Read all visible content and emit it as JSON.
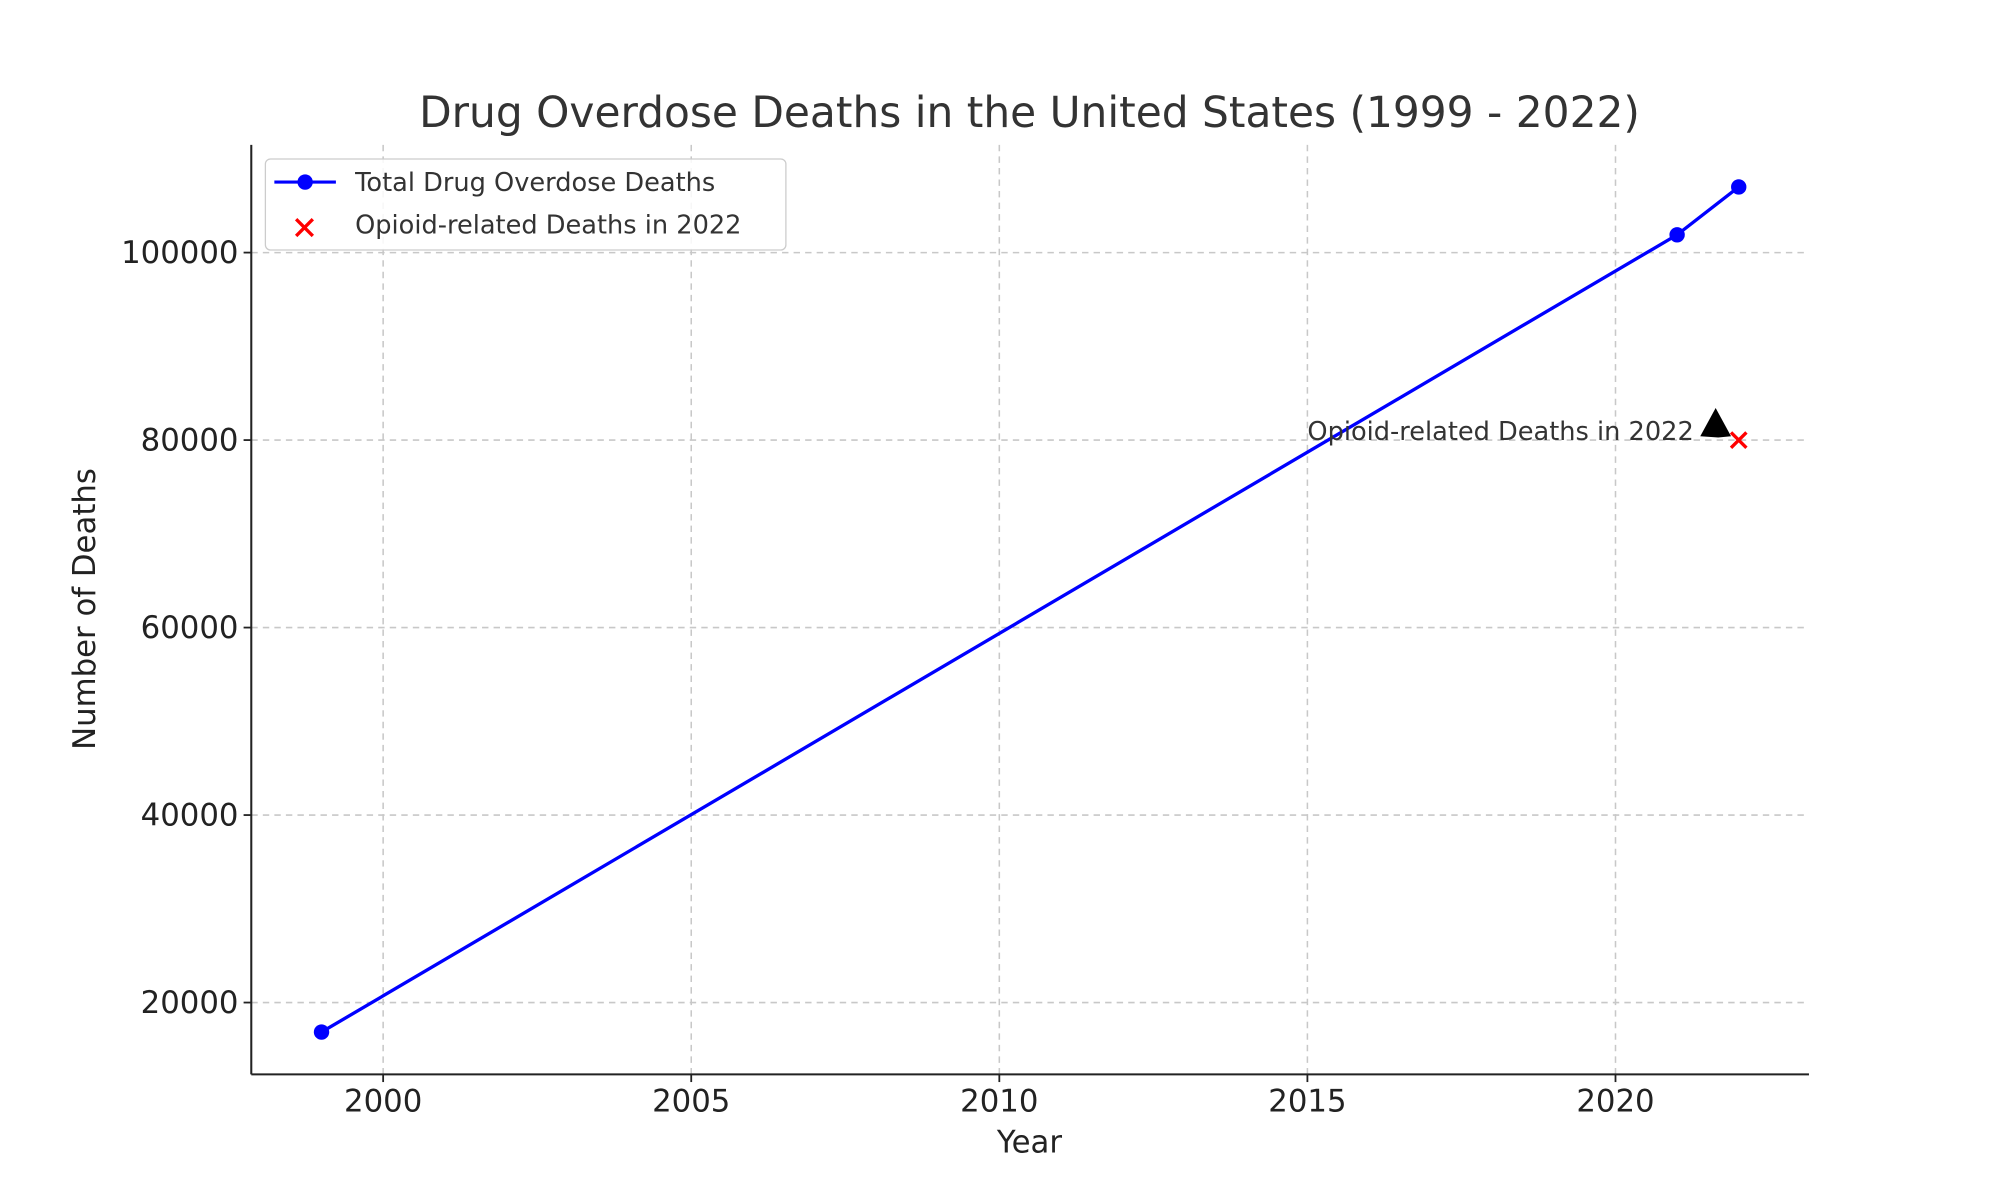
{
  "chart_data": {
    "type": "line",
    "title": "Drug Overdose Deaths in the United States (1999 - 2022)",
    "xlabel": "Year",
    "ylabel": "Number of Deaths",
    "xlim": [
      1997.86,
      2023.14
    ],
    "ylim": [
      12340,
      111490
    ],
    "xticks": [
      2000,
      2005,
      2010,
      2015,
      2020
    ],
    "yticks": [
      20000,
      40000,
      60000,
      80000,
      100000
    ],
    "grid": true,
    "legend_placement": "top-left",
    "series": [
      {
        "name": "Total Drug Overdose Deaths",
        "type": "line",
        "marker": "circle",
        "color": "#0000ff",
        "x": [
          1999,
          2021,
          2022
        ],
        "y": [
          16849,
          101900,
          107000
        ]
      },
      {
        "name": "Opioid-related Deaths in 2022",
        "type": "scatter",
        "marker": "x",
        "color": "#ff0000",
        "x": [
          2022
        ],
        "y": [
          80000
        ]
      }
    ],
    "annotations": [
      {
        "text": "Opioid-related Deaths in 2022",
        "x": 2015,
        "y": 80400,
        "arrow_to": [
          2022,
          80000
        ],
        "arrow_color": "#000000"
      }
    ]
  }
}
